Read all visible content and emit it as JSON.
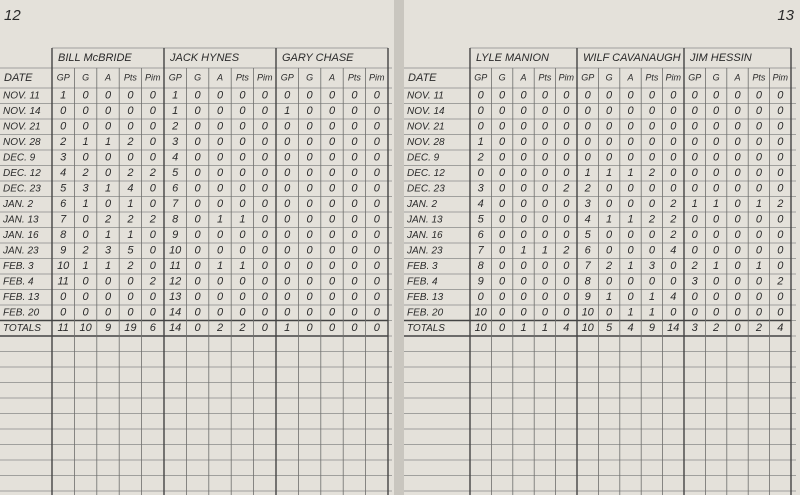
{
  "pages": [
    {
      "page_number": "12",
      "date_header": "DATE",
      "stat_headers": [
        "GP",
        "G",
        "A",
        "Pts",
        "Pim"
      ],
      "players": [
        "BILL McBRIDE",
        "JACK HYNES",
        "GARY CHASE"
      ],
      "rows": [
        {
          "date": "NOV. 11",
          "stats": [
            1,
            0,
            0,
            0,
            0,
            1,
            0,
            0,
            0,
            0,
            0,
            0,
            0,
            0,
            0
          ]
        },
        {
          "date": "NOV. 14",
          "stats": [
            0,
            0,
            0,
            0,
            0,
            1,
            0,
            0,
            0,
            0,
            1,
            0,
            0,
            0,
            0
          ]
        },
        {
          "date": "NOV. 21",
          "stats": [
            0,
            0,
            0,
            0,
            0,
            2,
            0,
            0,
            0,
            0,
            0,
            0,
            0,
            0,
            0
          ]
        },
        {
          "date": "NOV. 28",
          "stats": [
            2,
            1,
            1,
            2,
            0,
            3,
            0,
            0,
            0,
            0,
            0,
            0,
            0,
            0,
            0
          ]
        },
        {
          "date": "DEC. 9",
          "stats": [
            3,
            0,
            0,
            0,
            0,
            4,
            0,
            0,
            0,
            0,
            0,
            0,
            0,
            0,
            0
          ]
        },
        {
          "date": "DEC. 12",
          "stats": [
            4,
            2,
            0,
            2,
            2,
            5,
            0,
            0,
            0,
            0,
            0,
            0,
            0,
            0,
            0
          ]
        },
        {
          "date": "DEC. 23",
          "stats": [
            5,
            3,
            1,
            4,
            0,
            6,
            0,
            0,
            0,
            0,
            0,
            0,
            0,
            0,
            0
          ]
        },
        {
          "date": "JAN. 2",
          "stats": [
            6,
            1,
            0,
            1,
            0,
            7,
            0,
            0,
            0,
            0,
            0,
            0,
            0,
            0,
            0
          ]
        },
        {
          "date": "JAN. 13",
          "stats": [
            7,
            0,
            2,
            2,
            2,
            8,
            0,
            1,
            1,
            0,
            0,
            0,
            0,
            0,
            0
          ]
        },
        {
          "date": "JAN. 16",
          "stats": [
            8,
            0,
            1,
            1,
            0,
            9,
            0,
            0,
            0,
            0,
            0,
            0,
            0,
            0,
            0
          ]
        },
        {
          "date": "JAN. 23",
          "stats": [
            9,
            2,
            3,
            5,
            0,
            10,
            0,
            0,
            0,
            0,
            0,
            0,
            0,
            0,
            0
          ]
        },
        {
          "date": "FEB. 3",
          "stats": [
            10,
            1,
            1,
            2,
            0,
            11,
            0,
            1,
            1,
            0,
            0,
            0,
            0,
            0,
            0
          ]
        },
        {
          "date": "FEB. 4",
          "stats": [
            11,
            0,
            0,
            0,
            2,
            12,
            0,
            0,
            0,
            0,
            0,
            0,
            0,
            0,
            0
          ]
        },
        {
          "date": "FEB. 13",
          "stats": [
            0,
            0,
            0,
            0,
            0,
            13,
            0,
            0,
            0,
            0,
            0,
            0,
            0,
            0,
            0
          ]
        },
        {
          "date": "FEB. 20",
          "stats": [
            0,
            0,
            0,
            0,
            0,
            14,
            0,
            0,
            0,
            0,
            0,
            0,
            0,
            0,
            0
          ]
        },
        {
          "date": "TOTALS",
          "stats": [
            11,
            10,
            9,
            19,
            6,
            14,
            0,
            2,
            2,
            0,
            1,
            0,
            0,
            0,
            0
          ]
        }
      ]
    },
    {
      "page_number": "13",
      "date_header": "DATE",
      "stat_headers": [
        "GP",
        "G",
        "A",
        "Pts",
        "Pim"
      ],
      "players": [
        "LYLE MANION",
        "WILF CAVANAUGH",
        "JIM HESSIN"
      ],
      "rows": [
        {
          "date": "NOV. 11",
          "stats": [
            0,
            0,
            0,
            0,
            0,
            0,
            0,
            0,
            0,
            0,
            0,
            0,
            0,
            0,
            0
          ]
        },
        {
          "date": "NOV. 14",
          "stats": [
            0,
            0,
            0,
            0,
            0,
            0,
            0,
            0,
            0,
            0,
            0,
            0,
            0,
            0,
            0
          ]
        },
        {
          "date": "NOV. 21",
          "stats": [
            0,
            0,
            0,
            0,
            0,
            0,
            0,
            0,
            0,
            0,
            0,
            0,
            0,
            0,
            0
          ]
        },
        {
          "date": "NOV. 28",
          "stats": [
            1,
            0,
            0,
            0,
            0,
            0,
            0,
            0,
            0,
            0,
            0,
            0,
            0,
            0,
            0
          ]
        },
        {
          "date": "DEC. 9",
          "stats": [
            2,
            0,
            0,
            0,
            0,
            0,
            0,
            0,
            0,
            0,
            0,
            0,
            0,
            0,
            0
          ]
        },
        {
          "date": "DEC. 12",
          "stats": [
            0,
            0,
            0,
            0,
            0,
            1,
            1,
            1,
            2,
            0,
            0,
            0,
            0,
            0,
            0
          ]
        },
        {
          "date": "DEC. 23",
          "stats": [
            3,
            0,
            0,
            0,
            2,
            2,
            0,
            0,
            0,
            0,
            0,
            0,
            0,
            0,
            0
          ]
        },
        {
          "date": "JAN. 2",
          "stats": [
            4,
            0,
            0,
            0,
            0,
            3,
            0,
            0,
            0,
            2,
            1,
            1,
            0,
            1,
            2
          ]
        },
        {
          "date": "JAN. 13",
          "stats": [
            5,
            0,
            0,
            0,
            0,
            4,
            1,
            1,
            2,
            2,
            0,
            0,
            0,
            0,
            0
          ]
        },
        {
          "date": "JAN. 16",
          "stats": [
            6,
            0,
            0,
            0,
            0,
            5,
            0,
            0,
            0,
            2,
            0,
            0,
            0,
            0,
            0
          ]
        },
        {
          "date": "JAN. 23",
          "stats": [
            7,
            0,
            1,
            1,
            2,
            6,
            0,
            0,
            0,
            4,
            0,
            0,
            0,
            0,
            0
          ]
        },
        {
          "date": "FEB. 3",
          "stats": [
            8,
            0,
            0,
            0,
            0,
            7,
            2,
            1,
            3,
            0,
            2,
            1,
            0,
            1,
            0
          ]
        },
        {
          "date": "FEB. 4",
          "stats": [
            9,
            0,
            0,
            0,
            0,
            8,
            0,
            0,
            0,
            0,
            3,
            0,
            0,
            0,
            2
          ]
        },
        {
          "date": "FEB. 13",
          "stats": [
            0,
            0,
            0,
            0,
            0,
            9,
            1,
            0,
            1,
            4,
            0,
            0,
            0,
            0,
            0
          ]
        },
        {
          "date": "FEB. 20",
          "stats": [
            10,
            0,
            0,
            0,
            0,
            10,
            0,
            1,
            1,
            0,
            0,
            0,
            0,
            0,
            0
          ]
        },
        {
          "date": "TOTALS",
          "stats": [
            10,
            0,
            1,
            1,
            4,
            10,
            5,
            4,
            9,
            14,
            3,
            2,
            0,
            2,
            4
          ]
        }
      ]
    }
  ]
}
